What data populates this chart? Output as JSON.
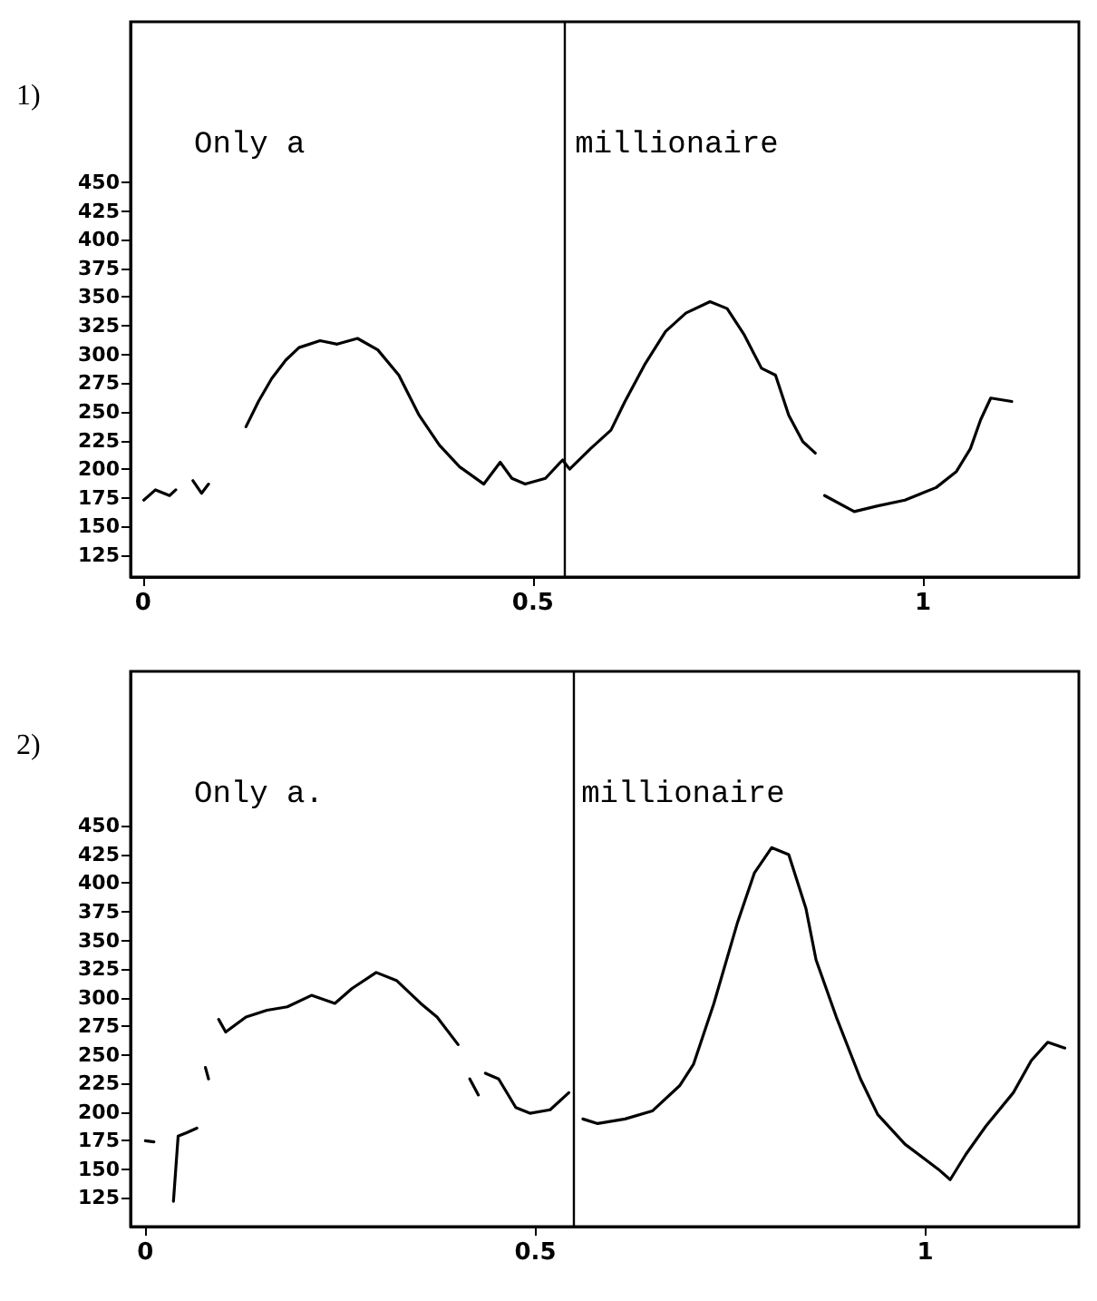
{
  "chart_data": [
    {
      "type": "line",
      "title": "1)",
      "color": "#000000",
      "marker": "none",
      "grid": false,
      "xlim": [
        -0.016,
        1.2
      ],
      "ylim": [
        106,
        590
      ],
      "xticks": [
        0,
        0.5,
        1
      ],
      "yticks": [
        125,
        150,
        175,
        200,
        225,
        250,
        275,
        300,
        325,
        350,
        375,
        400,
        425,
        450
      ],
      "x": [
        0.001,
        0.016,
        0.034,
        0.042,
        0.053,
        0.064,
        0.075,
        0.084,
        0.11,
        0.132,
        0.148,
        0.165,
        0.183,
        0.2,
        0.227,
        0.249,
        0.275,
        0.301,
        0.328,
        0.354,
        0.38,
        0.406,
        0.437,
        0.458,
        0.473,
        0.49,
        0.516,
        0.538,
        0.547,
        0.574,
        0.6,
        0.618,
        0.644,
        0.67,
        0.696,
        0.727,
        0.749,
        0.771,
        0.793,
        0.811,
        0.828,
        0.846,
        0.862,
        0.868,
        0.874,
        0.912,
        0.942,
        0.977,
        1.017,
        1.043,
        1.061,
        1.074,
        1.087,
        1.114
      ],
      "values": [
        173,
        182,
        177,
        182,
        null,
        190,
        179,
        187,
        null,
        237,
        259,
        279,
        295,
        306,
        312,
        309,
        314,
        304,
        282,
        247,
        221,
        202,
        187,
        206,
        192,
        187,
        192,
        208,
        200,
        218,
        234,
        259,
        292,
        320,
        336,
        346,
        340,
        317,
        288,
        282,
        247,
        224,
        214,
        null,
        177,
        163,
        168,
        173,
        184,
        198,
        218,
        243,
        262,
        259
      ],
      "ref_lines": [
        {
          "axis": "x",
          "value": 0.54,
          "color": "#000000"
        }
      ],
      "annotations": [
        "Only a",
        "millionaire"
      ]
    },
    {
      "type": "line",
      "title": "2)",
      "color": "#000000",
      "marker": "none",
      "grid": false,
      "xlim": [
        -0.019,
        1.197
      ],
      "ylim": [
        100,
        585
      ],
      "xticks": [
        0,
        0.5,
        1
      ],
      "yticks": [
        125,
        150,
        175,
        200,
        225,
        250,
        275,
        300,
        325,
        350,
        375,
        400,
        425,
        450
      ],
      "x": [
        0,
        0.011,
        0.024,
        0.036,
        0.042,
        0.053,
        0.066,
        0.072,
        0.077,
        0.081,
        0.088,
        0.094,
        0.103,
        0.129,
        0.156,
        0.182,
        0.213,
        0.243,
        0.265,
        0.296,
        0.322,
        0.353,
        0.374,
        0.401,
        0.409,
        0.416,
        0.427,
        0.432,
        0.436,
        0.453,
        0.475,
        0.493,
        0.519,
        0.543,
        0.552,
        0.561,
        0.58,
        0.615,
        0.65,
        0.685,
        0.703,
        0.729,
        0.759,
        0.781,
        0.803,
        0.825,
        0.847,
        0.86,
        0.886,
        0.917,
        0.939,
        0.974,
        1.017,
        1.032,
        1.052,
        1.078,
        1.113,
        1.136,
        1.157,
        1.179
      ],
      "values": [
        175,
        174,
        null,
        122,
        179,
        182,
        186,
        null,
        239,
        229,
        null,
        281,
        270,
        283,
        289,
        292,
        302,
        295,
        308,
        322,
        315,
        295,
        283,
        259,
        null,
        229,
        215,
        null,
        234,
        229,
        204,
        199,
        202,
        217,
        null,
        194,
        190,
        194,
        201,
        223,
        242,
        295,
        365,
        409,
        431,
        425,
        378,
        333,
        283,
        229,
        198,
        172,
        150,
        141,
        163,
        188,
        217,
        245,
        261,
        256
      ],
      "ref_lines": [
        {
          "axis": "x",
          "value": 0.545,
          "color": "#000000"
        }
      ],
      "annotations": [
        "Only a.",
        "millionaire"
      ]
    }
  ]
}
